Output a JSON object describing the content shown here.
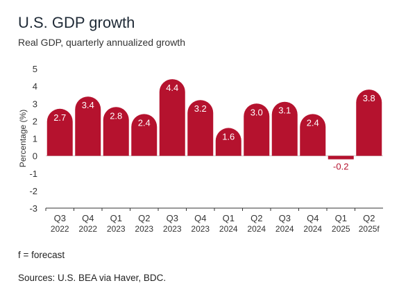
{
  "header": {
    "title": "U.S. GDP growth",
    "subtitle": "Real GDP, quarterly annualized growth"
  },
  "footer": {
    "note": "f = forecast",
    "source": "Sources: U.S. BEA via Haver, BDC."
  },
  "colors": {
    "bar": "#b5122e",
    "negative_label": "#b5122e",
    "positive_label": "#ffffff",
    "axis": "#333333",
    "zero_line": "#cccccc"
  },
  "chart_data": {
    "type": "bar",
    "ylabel": "Percentage (%)",
    "ylim": [
      -3,
      5
    ],
    "yticks": [
      -3,
      -2,
      -1,
      0,
      1,
      2,
      3,
      4,
      5
    ],
    "categories": [
      {
        "quarter": "Q3",
        "year": "2022"
      },
      {
        "quarter": "Q4",
        "year": "2022"
      },
      {
        "quarter": "Q1",
        "year": "2023"
      },
      {
        "quarter": "Q2",
        "year": "2023"
      },
      {
        "quarter": "Q3",
        "year": "2023"
      },
      {
        "quarter": "Q4",
        "year": "2023"
      },
      {
        "quarter": "Q1",
        "year": "2024"
      },
      {
        "quarter": "Q2",
        "year": "2024"
      },
      {
        "quarter": "Q3",
        "year": "2024"
      },
      {
        "quarter": "Q4",
        "year": "2024"
      },
      {
        "quarter": "Q1",
        "year": "2025"
      },
      {
        "quarter": "Q2",
        "year": "2025f"
      }
    ],
    "values": [
      2.7,
      3.4,
      2.8,
      2.4,
      4.4,
      3.2,
      1.6,
      3.0,
      3.1,
      2.4,
      -0.2,
      3.8
    ],
    "labels": [
      "2.7",
      "3.4",
      "2.8",
      "2.4",
      "4.4",
      "3.2",
      "1.6",
      "3.0",
      "3.1",
      "2.4",
      "-0.2",
      "3.8"
    ],
    "grid": false,
    "legend": "none"
  }
}
